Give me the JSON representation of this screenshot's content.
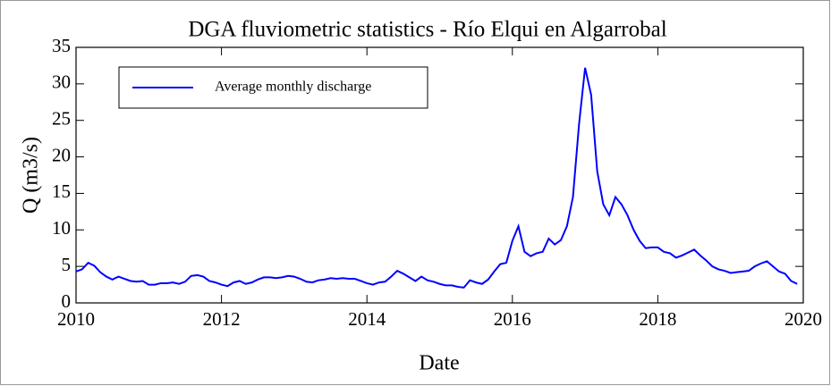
{
  "chart_data": {
    "type": "line",
    "title": "DGA fluviometric statistics - Río Elqui en Algarrobal",
    "x_label": "Date",
    "y_label": "Q (m3/s)",
    "xlim": [
      2010,
      2020
    ],
    "xticks": [
      2010,
      2012,
      2014,
      2016,
      2018,
      2020
    ],
    "ylim": [
      0,
      35
    ],
    "yticks": [
      0,
      5,
      10,
      15,
      20,
      25,
      30,
      35
    ],
    "legend": "upper left",
    "series": [
      {
        "name": "Average monthly discharge",
        "color": "#0000ff",
        "x": [
          2010,
          2010.083,
          2010.167,
          2010.25,
          2010.333,
          2010.417,
          2010.5,
          2010.583,
          2010.667,
          2010.75,
          2010.833,
          2010.917,
          2011,
          2011.083,
          2011.167,
          2011.25,
          2011.333,
          2011.417,
          2011.5,
          2011.583,
          2011.667,
          2011.75,
          2011.833,
          2011.917,
          2012,
          2012.083,
          2012.167,
          2012.25,
          2012.333,
          2012.417,
          2012.5,
          2012.583,
          2012.667,
          2012.75,
          2012.833,
          2012.917,
          2013,
          2013.083,
          2013.167,
          2013.25,
          2013.333,
          2013.417,
          2013.5,
          2013.583,
          2013.667,
          2013.75,
          2013.833,
          2013.917,
          2014,
          2014.083,
          2014.167,
          2014.25,
          2014.333,
          2014.417,
          2014.5,
          2014.583,
          2014.667,
          2014.75,
          2014.833,
          2014.917,
          2015,
          2015.083,
          2015.167,
          2015.25,
          2015.333,
          2015.417,
          2015.5,
          2015.583,
          2015.667,
          2015.75,
          2015.833,
          2015.917,
          2016,
          2016.083,
          2016.167,
          2016.25,
          2016.333,
          2016.417,
          2016.5,
          2016.583,
          2016.667,
          2016.75,
          2016.833,
          2016.917,
          2017,
          2017.083,
          2017.167,
          2017.25,
          2017.333,
          2017.417,
          2017.5,
          2017.583,
          2017.667,
          2017.75,
          2017.833,
          2017.917,
          2018,
          2018.083,
          2018.167,
          2018.25,
          2018.333,
          2018.417,
          2018.5,
          2018.583,
          2018.667,
          2018.75,
          2018.833,
          2018.917,
          2019,
          2019.083,
          2019.167,
          2019.25,
          2019.333,
          2019.417,
          2019.5,
          2019.583,
          2019.667,
          2019.75,
          2019.833,
          2019.917
        ],
        "values": [
          4.3,
          4.6,
          5.5,
          5.1,
          4.2,
          3.6,
          3.2,
          3.6,
          3.3,
          3.0,
          2.9,
          3.0,
          2.5,
          2.5,
          2.7,
          2.7,
          2.8,
          2.6,
          2.9,
          3.7,
          3.8,
          3.6,
          3.0,
          2.8,
          2.5,
          2.3,
          2.8,
          3.0,
          2.6,
          2.8,
          3.2,
          3.5,
          3.5,
          3.4,
          3.5,
          3.7,
          3.6,
          3.3,
          2.9,
          2.8,
          3.1,
          3.2,
          3.4,
          3.3,
          3.4,
          3.3,
          3.3,
          3.0,
          2.7,
          2.5,
          2.8,
          2.9,
          3.6,
          4.4,
          4.0,
          3.5,
          3.0,
          3.6,
          3.1,
          2.9,
          2.6,
          2.4,
          2.4,
          2.2,
          2.1,
          3.1,
          2.8,
          2.6,
          3.2,
          4.3,
          5.3,
          5.5,
          8.5,
          10.5,
          7.0,
          6.4,
          6.8,
          7.0,
          8.8,
          8.0,
          8.6,
          10.5,
          14.5,
          24.5,
          32.2,
          28.5,
          18.0,
          13.5,
          12.0,
          14.5,
          13.5,
          12.0,
          10.0,
          8.5,
          7.5,
          7.6,
          7.6,
          7.0,
          6.8,
          6.2,
          6.5,
          6.9,
          7.3,
          6.5,
          5.8,
          5.0,
          4.6,
          4.4,
          4.1,
          4.2,
          4.3,
          4.4,
          5.0,
          5.4,
          5.7,
          5.0,
          4.3,
          4.0,
          3.0,
          2.6
        ]
      }
    ]
  }
}
